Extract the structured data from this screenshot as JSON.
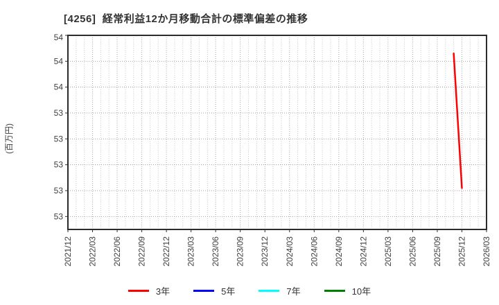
{
  "title": "[4256]  経常利益12か月移動合計の標準偏差の推移",
  "y_axis": {
    "unit_label": "(百万円)",
    "tick_display_labels": [
      "54",
      "54",
      "54",
      "53",
      "53",
      "53",
      "53",
      "53"
    ]
  },
  "legend": {
    "items": [
      {
        "label": "3年",
        "color": "#ff0000"
      },
      {
        "label": "5年",
        "color": "#0000ff"
      },
      {
        "label": "7年",
        "color": "#00ffff"
      },
      {
        "label": "10年",
        "color": "#008000"
      }
    ]
  },
  "chart_data": {
    "type": "line",
    "title": "[4256]  経常利益12か月移動合計の標準偏差の推移",
    "xlabel": "",
    "ylabel": "(百万円)",
    "x_tick_labels": [
      "2021/12",
      "2022/03",
      "2022/06",
      "2022/09",
      "2022/12",
      "2023/03",
      "2023/06",
      "2023/09",
      "2023/12",
      "2024/03",
      "2024/06",
      "2024/09",
      "2024/12",
      "2025/03",
      "2025/06",
      "2025/09",
      "2025/12",
      "2026/03"
    ],
    "x_minor_grid": "monthly",
    "x_range": [
      "2021/12",
      "2026/03"
    ],
    "ylim": [
      52.5,
      54.0
    ],
    "y_ticks": [
      54.0,
      53.8,
      53.6,
      53.4,
      53.2,
      53.0,
      52.8,
      52.6
    ],
    "y_tick_display": [
      "54",
      "54",
      "54",
      "53",
      "53",
      "53",
      "53",
      "53"
    ],
    "grid": "dotted",
    "legend_position": "bottom-center",
    "series": [
      {
        "name": "3年",
        "color": "#ff0000",
        "points": [
          [
            "2025/11",
            53.86
          ],
          [
            "2025/12",
            52.82
          ]
        ]
      },
      {
        "name": "5年",
        "color": "#0000ff",
        "points": []
      },
      {
        "name": "7年",
        "color": "#00ffff",
        "points": []
      },
      {
        "name": "10年",
        "color": "#008000",
        "points": []
      }
    ]
  }
}
